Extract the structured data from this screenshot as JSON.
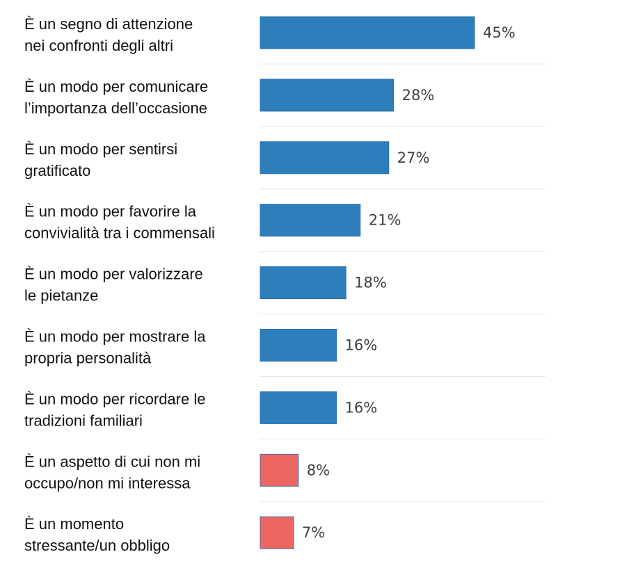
{
  "chart_data": {
    "type": "bar",
    "orientation": "horizontal",
    "categories": [
      [
        "È un segno di attenzione",
        "nei confronti degli altri"
      ],
      [
        "È un modo per comunicare",
        "l’importanza dell’occasione"
      ],
      [
        "È un modo per sentirsi",
        "gratificato"
      ],
      [
        "È un modo per favorire la",
        "convivialità tra i commensali"
      ],
      [
        "È un modo per valorizzare",
        "le pietanze"
      ],
      [
        "È un modo per mostrare la",
        "propria personalità"
      ],
      [
        "È un modo per ricordare le",
        "tradizioni familiari"
      ],
      [
        "È un aspetto di cui non mi",
        "occupo/non mi interessa"
      ],
      [
        "È un momento",
        "stressante/un obbligo"
      ]
    ],
    "values": [
      45,
      28,
      27,
      21,
      18,
      16,
      16,
      8,
      7
    ],
    "value_labels": [
      "45%",
      "28%",
      "27%",
      "21%",
      "18%",
      "16%",
      "16%",
      "8%",
      "7%"
    ],
    "unit": "%",
    "colors": [
      "#2e7ebc",
      "#2e7ebc",
      "#2e7ebc",
      "#2e7ebc",
      "#2e7ebc",
      "#2e7ebc",
      "#2e7ebc",
      "#ee6660",
      "#ee6660"
    ],
    "xlim": [
      0,
      45
    ],
    "grid": false,
    "legend": "none"
  }
}
